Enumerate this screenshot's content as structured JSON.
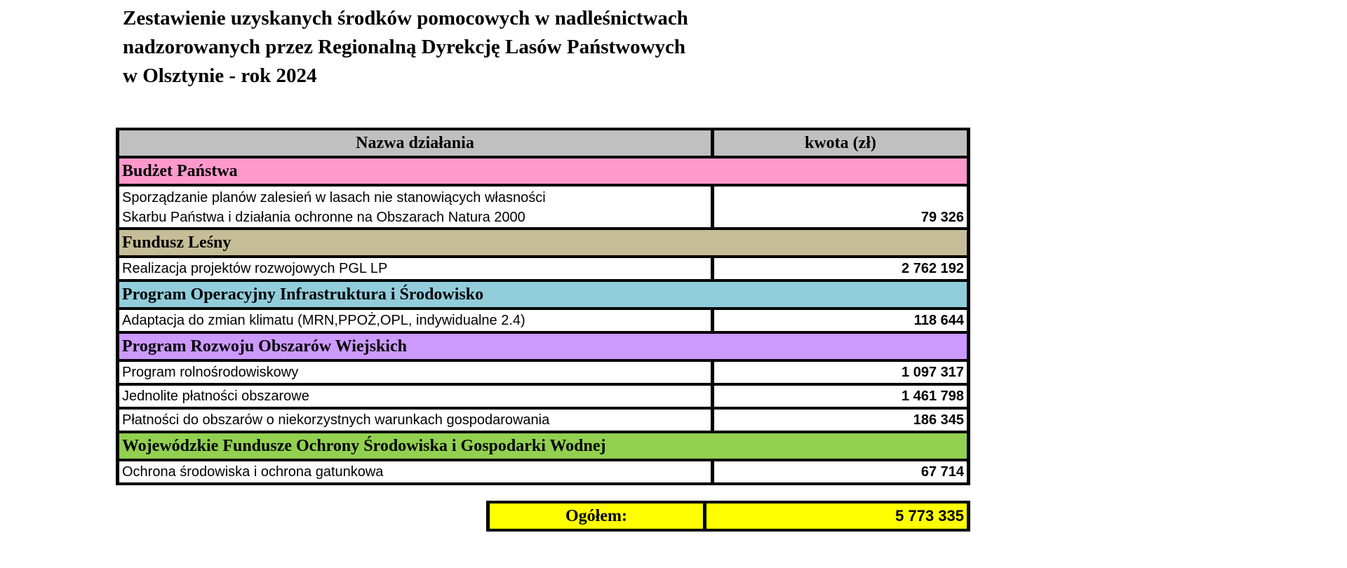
{
  "title": [
    "Zestawienie uzyskanych środków pomocowych w nadleśnictwach",
    "nadzorowanych przez Regionalną Dyrekcję Lasów Państwowych",
    "w Olsztynie - rok 2024"
  ],
  "table": {
    "headers": {
      "name": "Nazwa działania",
      "amount": "kwota (zł)"
    },
    "groups": [
      {
        "name": "Budżet Państwa",
        "color": "#ff99cc",
        "items": [
          {
            "name_lines": [
              "Sporządzanie planów zalesień w lasach nie stanowiących własności",
              "Skarbu Państwa i działania ochronne na Obszarach Natura 2000"
            ],
            "amount": "79 326"
          }
        ]
      },
      {
        "name": "Fundusz Leśny",
        "color": "#c4bd97",
        "items": [
          {
            "name": "Realizacja projektów rozwojowych PGL LP",
            "amount": "2 762 192"
          }
        ]
      },
      {
        "name": "Program Operacyjny Infrastruktura i Środowisko",
        "color": "#92cddc",
        "items": [
          {
            "name": "Adaptacja do zmian klimatu (MRN,PPOŻ,OPL, indywidualne 2.4)",
            "amount": "118 644"
          }
        ]
      },
      {
        "name": "Program Rozwoju Obszarów Wiejskich",
        "color": "#cc99ff",
        "items": [
          {
            "name": "Program rolnośrodowiskowy",
            "amount": "1 097 317"
          },
          {
            "name": "Jednolite płatności obszarowe",
            "amount": "1 461 798"
          },
          {
            "name": "Płatności do obszarów o niekorzystnych warunkach gospodarowania",
            "amount": "186 345"
          }
        ]
      },
      {
        "name": "Wojewódzkie Fundusze Ochrony Środowiska i Gospodarki Wodnej",
        "color": "#92d050",
        "items": [
          {
            "name": "Ochrona środowiska i ochrona gatunkowa",
            "amount": "67 714"
          }
        ]
      }
    ]
  },
  "total": {
    "label": "Ogółem:",
    "amount": "5 773 335",
    "color": "#ffff00"
  }
}
